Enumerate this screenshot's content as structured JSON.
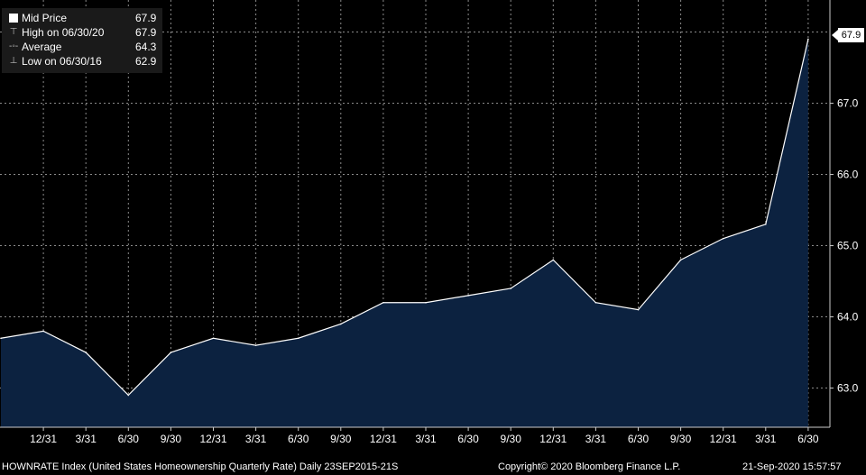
{
  "chart_data": {
    "type": "area",
    "x": [
      "9/30",
      "12/31",
      "3/31",
      "6/30",
      "9/30",
      "12/31",
      "3/31",
      "6/30",
      "9/30",
      "12/31",
      "3/31",
      "6/30",
      "9/30",
      "12/31",
      "3/31",
      "6/30",
      "9/30",
      "12/31",
      "3/31",
      "6/30"
    ],
    "x_tick_labels": [
      "12/31",
      "3/31",
      "6/30",
      "9/30",
      "12/31",
      "3/31",
      "6/30",
      "9/30",
      "12/31",
      "3/31",
      "6/30",
      "9/30",
      "12/31",
      "3/31",
      "6/30",
      "9/30",
      "12/31",
      "3/31",
      "6/30"
    ],
    "series": [
      {
        "name": "Mid Price",
        "values": [
          63.7,
          63.8,
          63.5,
          62.9,
          63.5,
          63.7,
          63.6,
          63.7,
          63.9,
          64.2,
          64.2,
          64.3,
          64.4,
          64.8,
          64.2,
          64.1,
          64.8,
          65.1,
          65.3,
          67.9
        ]
      }
    ],
    "y_ticks": [
      "63.0",
      "64.0",
      "65.0",
      "66.0",
      "67.0"
    ],
    "ylim": [
      62.45,
      68.45
    ],
    "grid": true,
    "legend_placement": "top-left",
    "fill_color": "#0c2240",
    "line_color": "#ffffff",
    "last_value_label": "67.9"
  },
  "legend": {
    "items": [
      {
        "symbol": "box",
        "label": "Mid Price",
        "value": "67.9"
      },
      {
        "symbol": "high",
        "label": "High on 06/30/20",
        "value": "67.9"
      },
      {
        "symbol": "avg",
        "label": "Average",
        "value": "64.3"
      },
      {
        "symbol": "low",
        "label": "Low on 06/30/16",
        "value": "62.9"
      }
    ]
  },
  "footer": {
    "ticker": "HOWNRATE Index (United States Homeownership Quarterly Rate)  Daily 23SEP2015-21S",
    "copyright": "Copyright© 2020 Bloomberg Finance L.P.",
    "timestamp": "21-Sep-2020 15:57:57"
  }
}
